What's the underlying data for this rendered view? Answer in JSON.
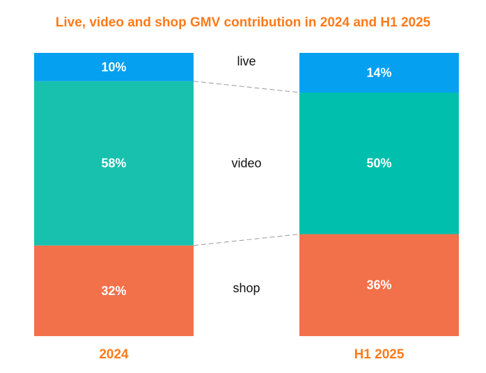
{
  "chart_data": {
    "type": "bar",
    "stacked": true,
    "title": "Live, video and shop GMV contribution in 2024 and H1 2025",
    "categories": [
      "2024",
      "H1 2025"
    ],
    "unit": "%",
    "ylim": [
      0,
      100
    ],
    "series": [
      {
        "name": "shop",
        "values": [
          32,
          36
        ],
        "color": "#F2714A"
      },
      {
        "name": "video",
        "values": [
          58,
          50
        ],
        "colors": [
          "#17C1AE",
          "#00C0AD"
        ]
      },
      {
        "name": "live",
        "values": [
          10,
          14
        ],
        "color": "#05A0F0"
      }
    ],
    "data_labels": [
      [
        "32%",
        "36%"
      ],
      [
        "58%",
        "50%"
      ],
      [
        "10%",
        "14%"
      ]
    ],
    "category_label_color": "#FF7A1A",
    "connector_lines": "dashed",
    "grid": false
  }
}
